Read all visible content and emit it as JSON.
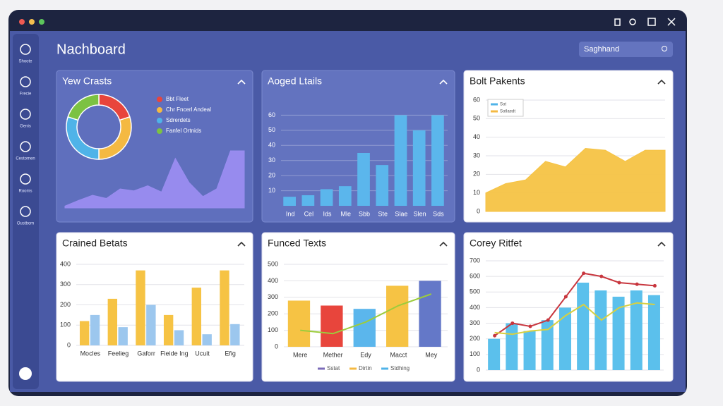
{
  "header": {
    "title": "Nachboard",
    "search": "Saghhand"
  },
  "sidebar": [
    "Shoote",
    "Frecie",
    "Genis",
    "Cestomen",
    "Rooms",
    "Oustbom"
  ],
  "panels": [
    {
      "title": "Yew Crasts",
      "chart_data": [
        {
          "type": "pie",
          "categories": [
            "Bbt Fleet",
            "Chr Fncerl Andeal",
            "Sdrerdets",
            "Fanfel Ortnids"
          ],
          "values": [
            20,
            30,
            30,
            20
          ],
          "colors": [
            "#e8453c",
            "#f4b942",
            "#4fb3e8",
            "#7cc242"
          ]
        },
        {
          "type": "area",
          "values": [
            3,
            12,
            20,
            15,
            30,
            27,
            35,
            25,
            78,
            40,
            18,
            30,
            90,
            90
          ],
          "ylim": [
            0,
            100
          ],
          "color": "#9a8cf0"
        }
      ]
    },
    {
      "title": "Aoged Ltails",
      "chart_data": [
        {
          "type": "bar",
          "categories": [
            "Ind",
            "Cel",
            "Ids",
            "Mle",
            "Sbb",
            "Ste",
            "Slae",
            "Slen",
            "Sds"
          ],
          "series": [
            {
              "color": "#5bb6ec",
              "values": [
                6,
                7,
                11,
                13,
                35,
                27,
                60,
                50,
                60
              ]
            }
          ],
          "ylim": [
            0,
            70
          ],
          "yticks": [
            10,
            20,
            30,
            40,
            50,
            60
          ],
          "grid": true
        }
      ]
    },
    {
      "title": "Bolt Pakents",
      "legend": [
        {
          "name": "Sot",
          "color": "#4fb3e8"
        },
        {
          "name": "Sotlaedt",
          "color": "#f4b942"
        }
      ],
      "chart_data": [
        {
          "type": "area",
          "values": [
            10,
            15,
            17,
            27,
            24,
            34,
            33,
            27,
            33,
            33
          ],
          "ylim": [
            0,
            60
          ],
          "yticks": [
            0,
            10,
            20,
            30,
            40,
            50,
            60
          ],
          "color": "#f6c344",
          "grid": true
        }
      ]
    },
    {
      "title": "Crained Betats",
      "chart_data": [
        {
          "type": "bar",
          "categories": [
            "Mocles",
            "Feelieg",
            "Gaforr",
            "Fieide Ing",
            "Ucuit",
            "Efig"
          ],
          "series": [
            {
              "color": "#f6c344",
              "values": [
                120,
                230,
                370,
                150,
                285,
                370
              ]
            },
            {
              "color": "#9cc7ee",
              "values": [
                150,
                90,
                200,
                75,
                55,
                105
              ]
            }
          ],
          "ylim": [
            0,
            400
          ],
          "yticks": [
            0,
            100,
            200,
            300,
            400
          ],
          "grid": true
        }
      ]
    },
    {
      "title": "Funced Texts",
      "legend": [
        {
          "name": "Sstat",
          "color": "#7b6bb8"
        },
        {
          "name": "Dirtin",
          "color": "#f4b942"
        },
        {
          "name": "Stdhing",
          "color": "#4fb3e8"
        }
      ],
      "chart_data": [
        {
          "type": "bar",
          "categories": [
            "Mere",
            "Mether",
            "Edy",
            "Macct",
            "Mey"
          ],
          "series": [
            {
              "colors": [
                "#f6c344",
                "#e8453c",
                "#5bb6ec",
                "#f6c344",
                "#6478c8"
              ],
              "values": [
                280,
                250,
                230,
                370,
                400
              ]
            },
            {
              "kind": "line",
              "color": "#9ccc3c",
              "values": [
                100,
                80,
                150,
                250,
                320
              ]
            }
          ],
          "ylim": [
            0,
            500
          ],
          "yticks": [
            0,
            100,
            200,
            300,
            400,
            500
          ],
          "grid": true
        }
      ]
    },
    {
      "title": "Corey Ritfet",
      "chart_data": [
        {
          "type": "bar",
          "series": [
            {
              "color": "#5bc0ec",
              "values": [
                200,
                300,
                250,
                320,
                400,
                560,
                510,
                470,
                510,
                480
              ]
            },
            {
              "kind": "line",
              "color": "#c8363e",
              "markers": true,
              "values": [
                220,
                300,
                280,
                320,
                470,
                620,
                600,
                560,
                550,
                540
              ]
            },
            {
              "kind": "line",
              "color": "#d8d040",
              "values": [
                240,
                230,
                250,
                260,
                350,
                420,
                320,
                400,
                430,
                420
              ]
            }
          ],
          "ylim": [
            0,
            700
          ],
          "yticks": [
            0,
            100,
            200,
            300,
            400,
            500,
            600,
            700
          ],
          "grid": true
        }
      ]
    }
  ]
}
